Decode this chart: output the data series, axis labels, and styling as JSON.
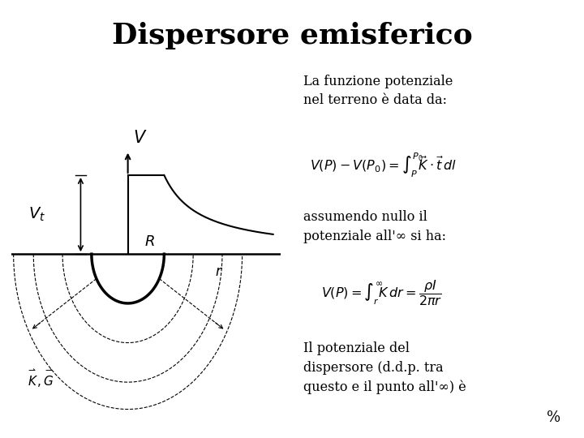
{
  "title": "Dispersore emisferico",
  "title_fontsize": 26,
  "background_color": "#ffffff",
  "text_color": "#000000",
  "text1": "La funzione potenziale\nnel terreno è data da:",
  "text2": "assumendo nullo il\npotenziale all'∞ si ha:",
  "text3": "Il potenziale del\ndispersore (d.d.p. tra\nquesto e il punto all'∞) è",
  "percent": "%",
  "fig_width": 7.2,
  "fig_height": 5.4,
  "dpi": 100
}
